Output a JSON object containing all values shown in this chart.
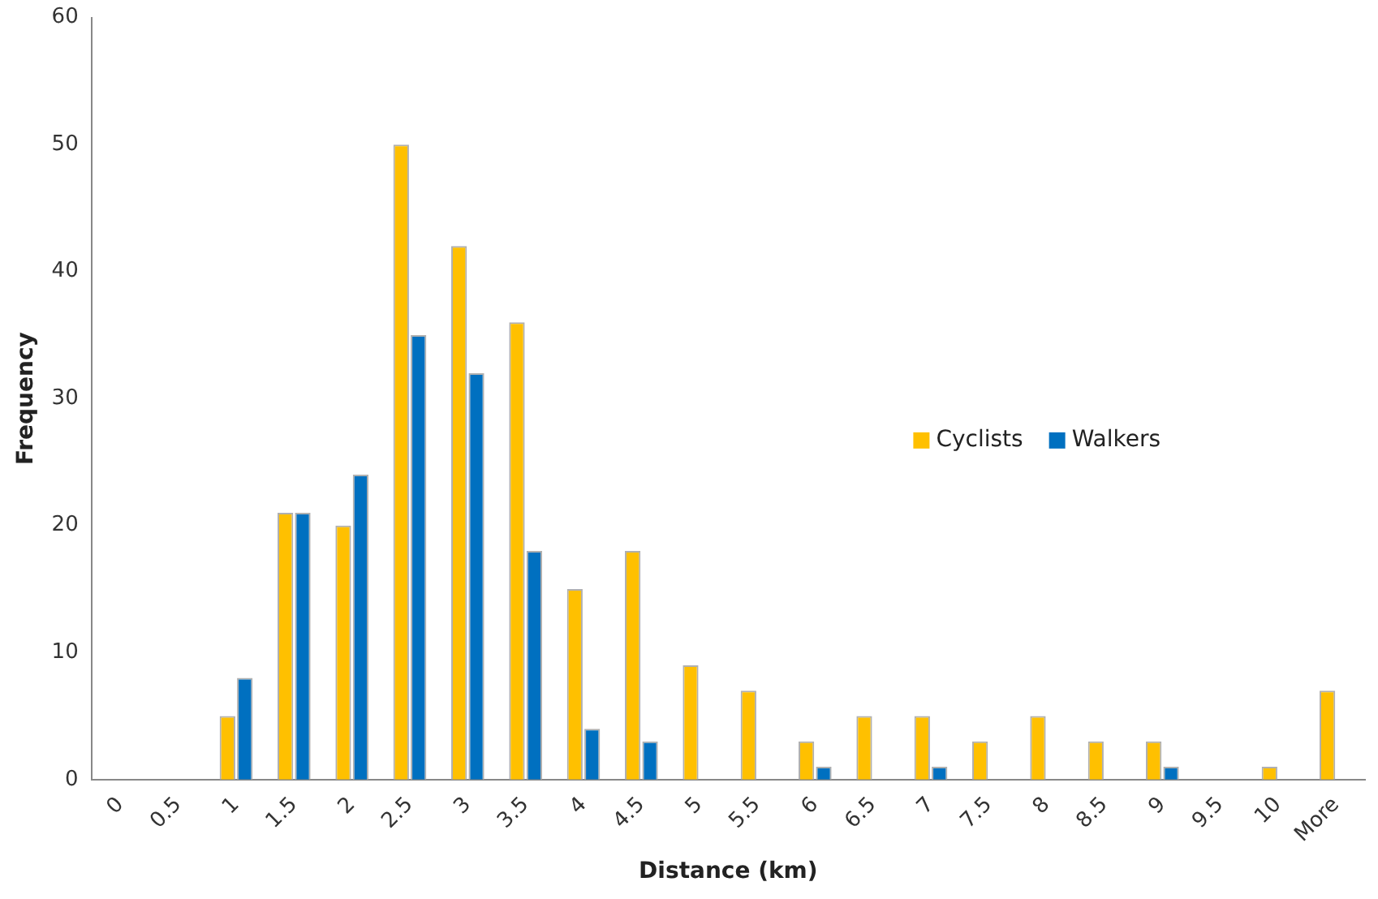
{
  "chart_data": {
    "type": "bar",
    "xlabel": "Distance (km)",
    "ylabel": "Frequency",
    "categories": [
      "0",
      "0.5",
      "1",
      "1.5",
      "2",
      "2.5",
      "3",
      "3.5",
      "4",
      "4.5",
      "5",
      "5.5",
      "6",
      "6.5",
      "7",
      "7.5",
      "8",
      "8.5",
      "9",
      "9.5",
      "10",
      "More"
    ],
    "series": [
      {
        "name": "Cyclists",
        "color": "#ffc000",
        "values": [
          0,
          0,
          5,
          21,
          20,
          50,
          42,
          36,
          15,
          18,
          9,
          7,
          3,
          5,
          5,
          3,
          5,
          3,
          3,
          0,
          1,
          7
        ]
      },
      {
        "name": "Walkers",
        "color": "#0070c0",
        "values": [
          0,
          0,
          8,
          21,
          24,
          35,
          32,
          18,
          4,
          3,
          0,
          0,
          1,
          0,
          1,
          0,
          0,
          0,
          1,
          0,
          0,
          0
        ]
      }
    ],
    "ylim": [
      0,
      60
    ],
    "yticks": [
      0,
      10,
      20,
      30,
      40,
      50,
      60
    ],
    "grid": false,
    "legend": "right"
  }
}
